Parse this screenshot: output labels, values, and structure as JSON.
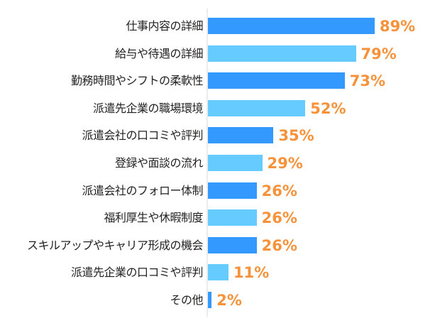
{
  "chart_data": {
    "type": "bar",
    "orientation": "horizontal",
    "title": "",
    "xlabel": "",
    "ylabel": "",
    "xlim": [
      0,
      100
    ],
    "grid": false,
    "legend": null,
    "value_suffix": "%",
    "colors": {
      "bar_dark": "#3399ff",
      "bar_light": "#66ccff",
      "label": "#f7923a",
      "axis": "#ececec"
    },
    "categories": [
      "仕事内容の詳細",
      "給与や待遇の詳細",
      "勤務時間やシフトの柔軟性",
      "派遣先企業の職場環境",
      "派遣会社の口コミや評判",
      "登録や面談の流れ",
      "派遣会社のフォロー体制",
      "福利厚生や休暇制度",
      "スキルアップやキャリア形成の機会",
      "派遣先企業の口コミや評判",
      "その他"
    ],
    "values": [
      89,
      79,
      73,
      52,
      35,
      29,
      26,
      26,
      26,
      11,
      2
    ],
    "labels": [
      "89%",
      "79%",
      "73%",
      "52%",
      "35%",
      "29%",
      "26%",
      "26%",
      "26%",
      "11%",
      "2%"
    ]
  }
}
